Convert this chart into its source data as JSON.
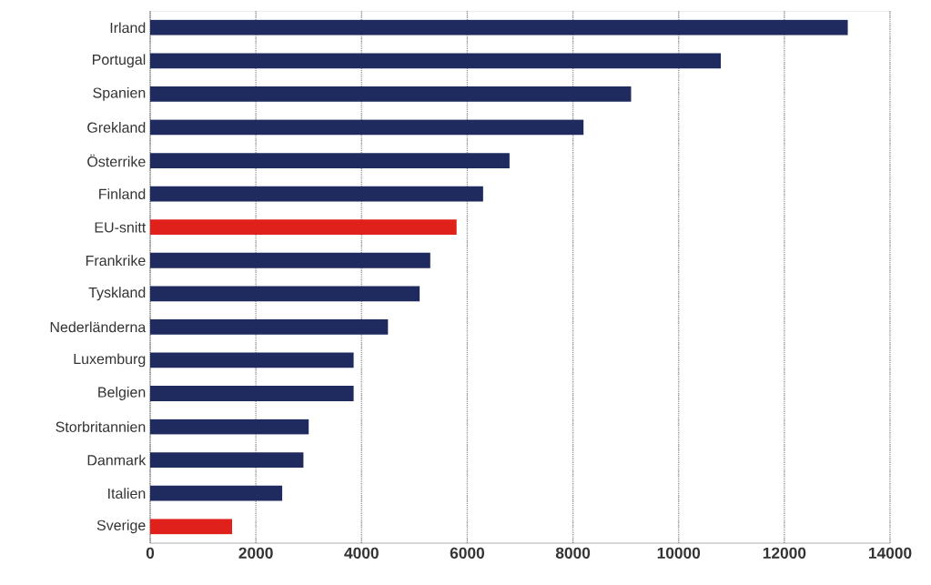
{
  "chart_data": {
    "type": "bar",
    "orientation": "horizontal",
    "categories": [
      "Irland",
      "Portugal",
      "Spanien",
      "Grekland",
      "Österrike",
      "Finland",
      "EU-snitt",
      "Frankrike",
      "Tyskland",
      "Nederländerna",
      "Luxemburg",
      "Belgien",
      "Storbritannien",
      "Danmark",
      "Italien",
      "Sverige"
    ],
    "values": [
      13200,
      10800,
      9100,
      8200,
      6800,
      6300,
      5800,
      5300,
      5100,
      4500,
      3850,
      3850,
      3000,
      2900,
      2500,
      1550
    ],
    "colors": [
      "#1f2a5e",
      "#1f2a5e",
      "#1f2a5e",
      "#1f2a5e",
      "#1f2a5e",
      "#1f2a5e",
      "#e0201b",
      "#1f2a5e",
      "#1f2a5e",
      "#1f2a5e",
      "#1f2a5e",
      "#1f2a5e",
      "#1f2a5e",
      "#1f2a5e",
      "#1f2a5e",
      "#e0201b"
    ],
    "xlim": [
      0,
      14000
    ],
    "xticks": [
      0,
      2000,
      4000,
      6000,
      8000,
      10000,
      12000,
      14000
    ],
    "grid": "x"
  }
}
